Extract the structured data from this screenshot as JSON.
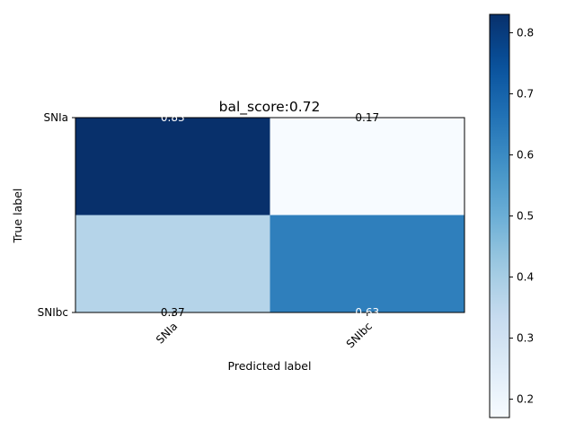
{
  "chart_data": {
    "type": "heatmap",
    "title": "bal_score:0.72",
    "xlabel": "Predicted label",
    "ylabel": "True label",
    "x_categories": [
      "SNIa",
      "SNIbc"
    ],
    "y_categories": [
      "SNIa",
      "SNIbc"
    ],
    "values": [
      [
        0.83,
        0.17
      ],
      [
        0.37,
        0.63
      ]
    ],
    "cell_labels": [
      [
        "0.83",
        "0.17"
      ],
      [
        "0.37",
        "0.63"
      ]
    ],
    "colormap": "Blues",
    "colorbar": {
      "range": [
        0.17,
        0.83
      ],
      "ticks": [
        0.2,
        0.3,
        0.4,
        0.5,
        0.6,
        0.7,
        0.8
      ],
      "tick_labels": [
        "0.2",
        "0.3",
        "0.4",
        "0.5",
        "0.6",
        "0.7",
        "0.8"
      ]
    },
    "grid": false,
    "legend": "none"
  }
}
